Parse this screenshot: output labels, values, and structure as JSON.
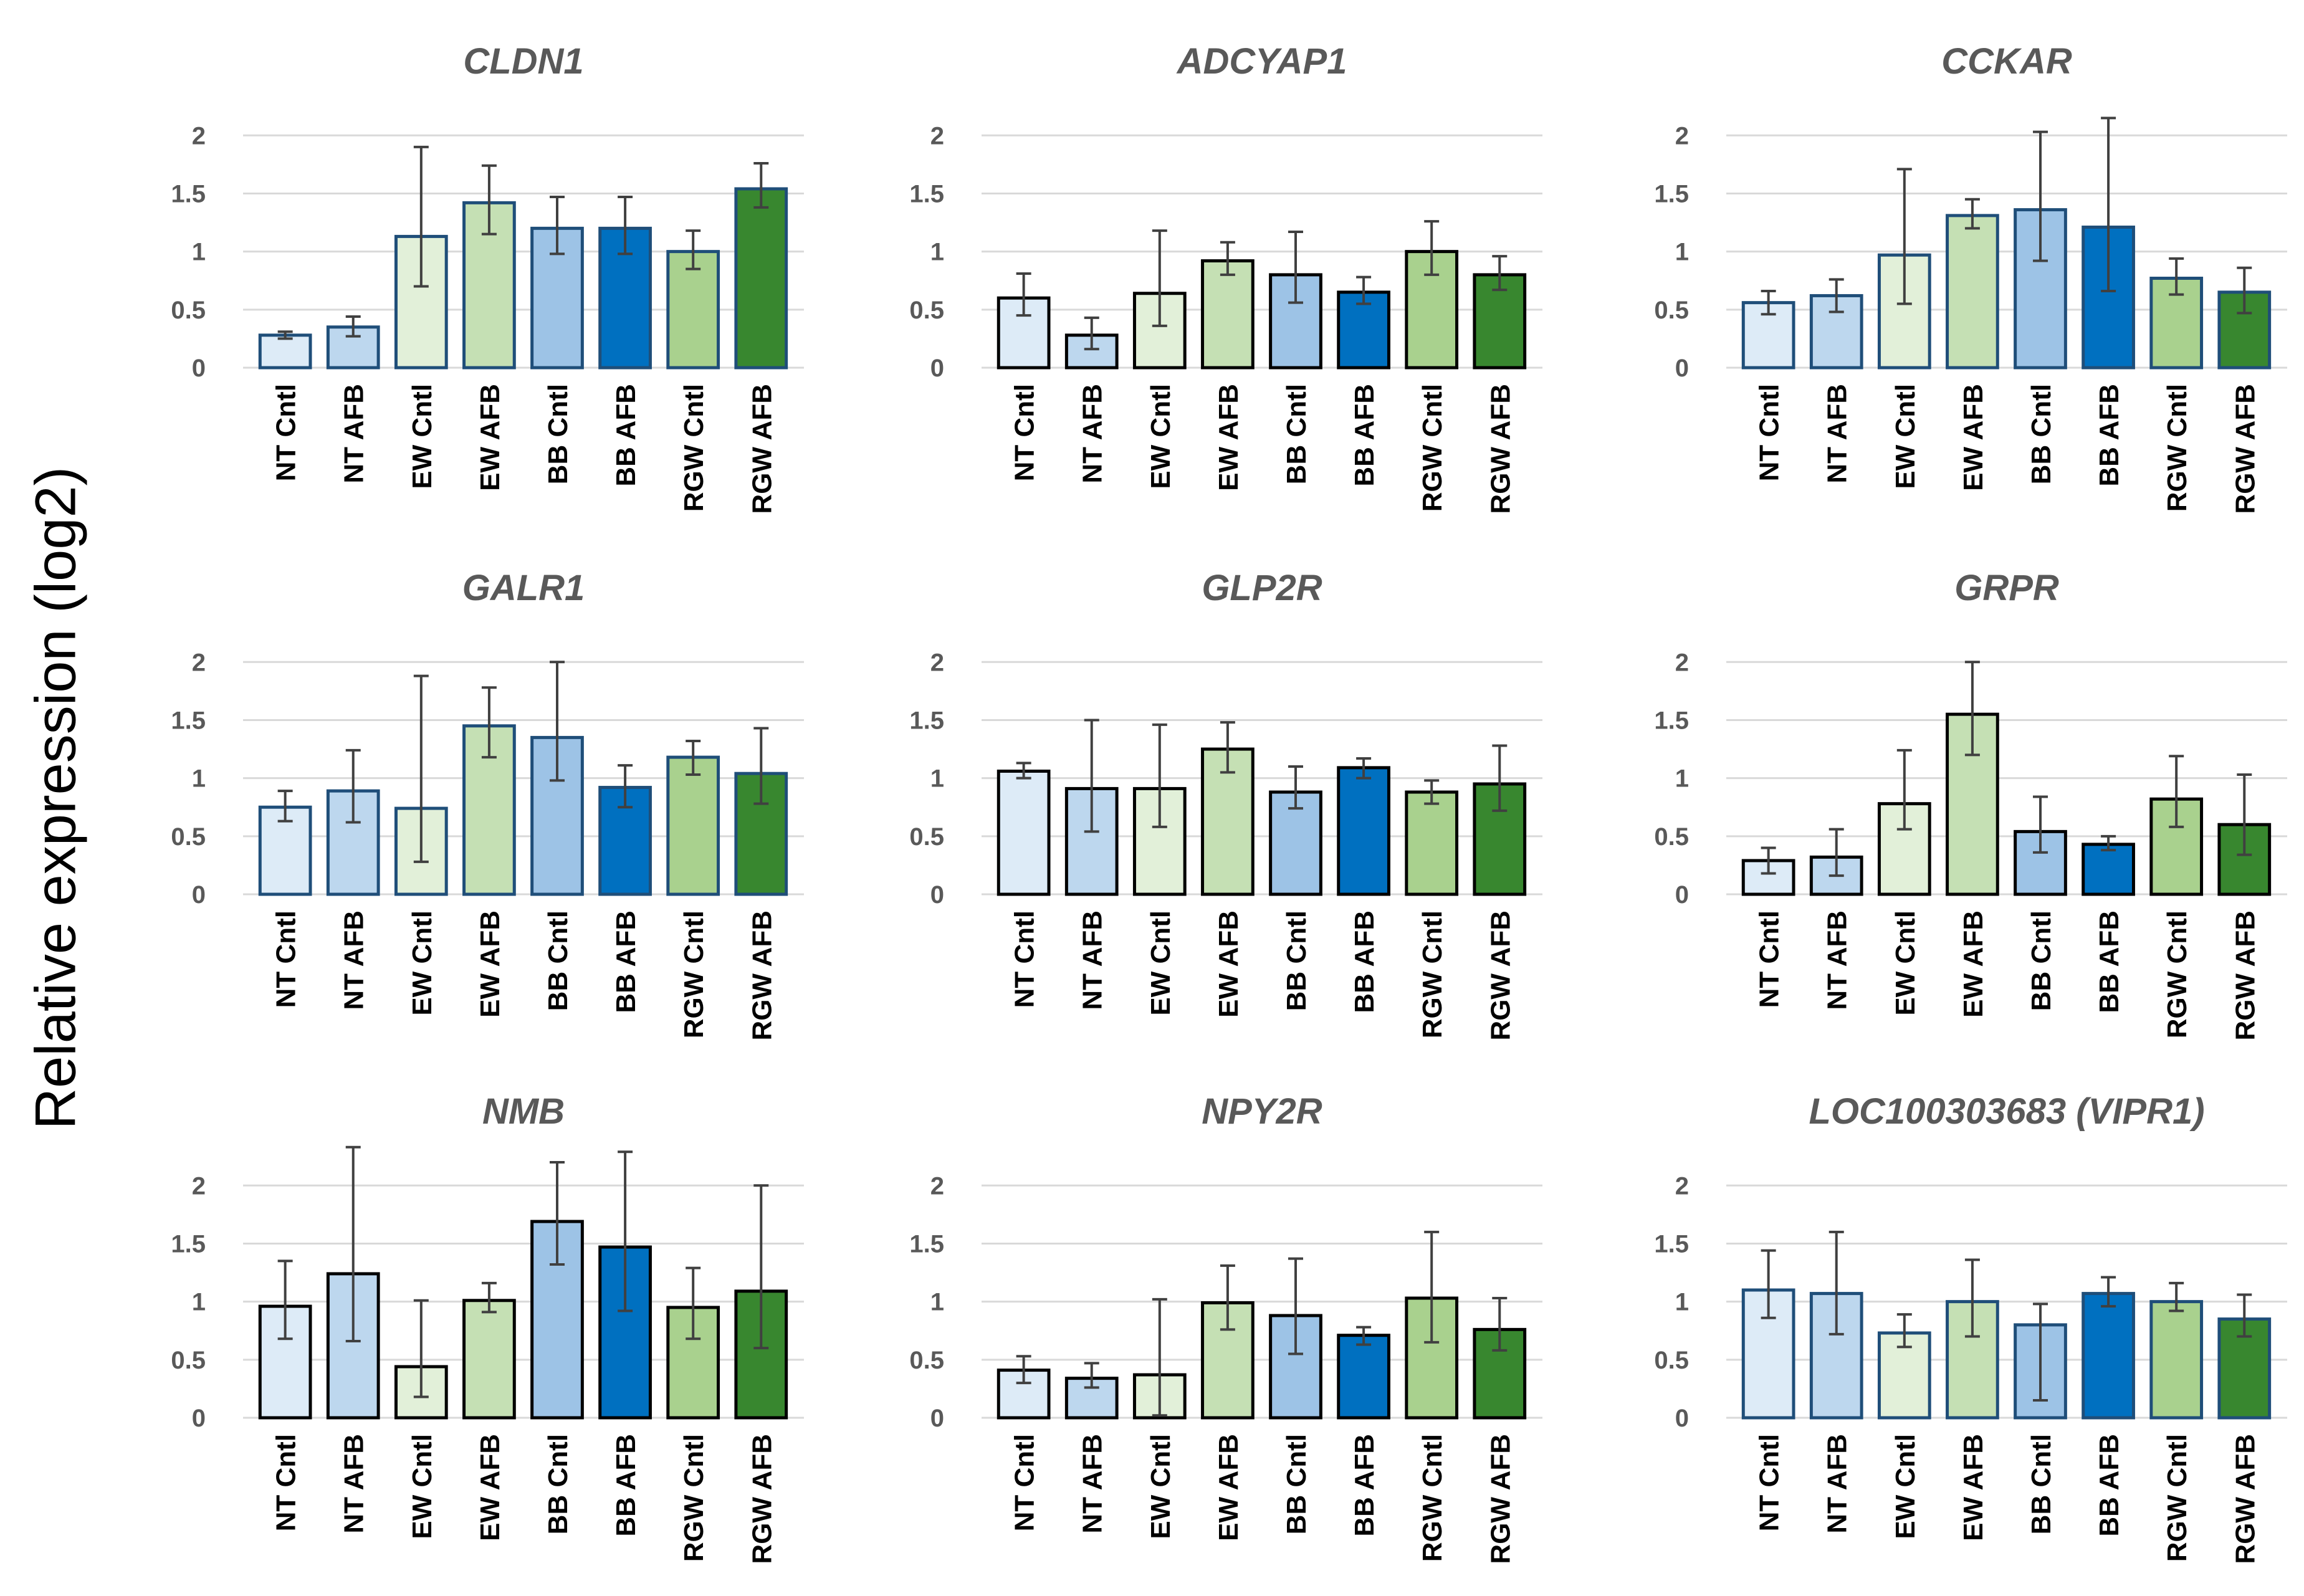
{
  "figure": {
    "ylabel": "Relative expression (log2)"
  },
  "colors": {
    "NT Cntl": "#DDEBF7",
    "NT AFB": "#BDD7EE",
    "EW Cntl": "#E2F0D9",
    "EW AFB": "#C5E0B4",
    "BB Cntl": "#9DC3E6",
    "BB AFB": "#0070C0",
    "RGW Cntl": "#A9D18E",
    "RGW AFB": "#38872F",
    "blue_edge": "#1F4E79",
    "black_edge": "#000000",
    "title": "#595959",
    "tick": "#595959",
    "grid": "#D9D9D9",
    "error": "#404040"
  },
  "chart_data": [
    {
      "type": "bar",
      "title": "CLDN1",
      "categories": [
        "NT Cntl",
        "NT AFB",
        "EW Cntl",
        "EW AFB",
        "BB Cntl",
        "BB AFB",
        "RGW Cntl",
        "RGW AFB"
      ],
      "values": [
        0.28,
        0.35,
        1.13,
        1.42,
        1.2,
        1.2,
        1.0,
        1.54
      ],
      "error_low": [
        0.25,
        0.27,
        0.7,
        1.15,
        0.98,
        0.98,
        0.85,
        1.38
      ],
      "error_high": [
        0.31,
        0.44,
        1.9,
        1.74,
        1.47,
        1.47,
        1.18,
        1.76
      ],
      "yticks": [
        "0",
        "0.5",
        "1",
        "1.5",
        "2"
      ],
      "ylim": [
        0,
        2.2
      ],
      "edge": "blue"
    },
    {
      "type": "bar",
      "title": "ADCYAP1",
      "categories": [
        "NT Cntl",
        "NT AFB",
        "EW Cntl",
        "EW AFB",
        "BB Cntl",
        "BB AFB",
        "RGW Cntl",
        "RGW AFB"
      ],
      "values": [
        0.6,
        0.28,
        0.64,
        0.92,
        0.8,
        0.65,
        1.0,
        0.8
      ],
      "error_low": [
        0.45,
        0.16,
        0.36,
        0.8,
        0.56,
        0.55,
        0.8,
        0.67
      ],
      "error_high": [
        0.81,
        0.43,
        1.18,
        1.08,
        1.17,
        0.78,
        1.26,
        0.96
      ],
      "yticks": [
        "0",
        "0.5",
        "1",
        "1.5",
        "2"
      ],
      "ylim": [
        0,
        2.2
      ],
      "edge": "black"
    },
    {
      "type": "bar",
      "title": "CCKAR",
      "categories": [
        "NT Cntl",
        "NT AFB",
        "EW Cntl",
        "EW AFB",
        "BB Cntl",
        "BB AFB",
        "RGW Cntl",
        "RGW AFB"
      ],
      "values": [
        0.56,
        0.62,
        0.97,
        1.31,
        1.36,
        1.21,
        0.77,
        0.65
      ],
      "error_low": [
        0.46,
        0.48,
        0.55,
        1.2,
        0.92,
        0.66,
        0.63,
        0.47
      ],
      "error_high": [
        0.66,
        0.76,
        1.71,
        1.45,
        2.03,
        2.15,
        0.94,
        0.86
      ],
      "yticks": [
        "0",
        "0.5",
        "1",
        "1.5",
        "2"
      ],
      "ylim": [
        0,
        2.2
      ],
      "edge": "blue"
    },
    {
      "type": "bar",
      "title": "GALR1",
      "categories": [
        "NT Cntl",
        "NT AFB",
        "EW Cntl",
        "EW AFB",
        "BB Cntl",
        "BB AFB",
        "RGW Cntl",
        "RGW AFB"
      ],
      "values": [
        0.75,
        0.89,
        0.74,
        1.45,
        1.35,
        0.92,
        1.18,
        1.04
      ],
      "error_low": [
        0.63,
        0.62,
        0.28,
        1.18,
        0.98,
        0.75,
        1.03,
        0.78
      ],
      "error_high": [
        0.89,
        1.24,
        1.88,
        1.78,
        2.0,
        1.11,
        1.32,
        1.43
      ],
      "yticks": [
        "0",
        "0.5",
        "1",
        "1.5",
        "2"
      ],
      "ylim": [
        0,
        2.2
      ],
      "edge": "blue"
    },
    {
      "type": "bar",
      "title": "GLP2R",
      "categories": [
        "NT Cntl",
        "NT AFB",
        "EW Cntl",
        "EW AFB",
        "BB Cntl",
        "BB AFB",
        "RGW Cntl",
        "RGW AFB"
      ],
      "values": [
        1.06,
        0.91,
        0.91,
        1.25,
        0.88,
        1.09,
        0.88,
        0.95
      ],
      "error_low": [
        1.0,
        0.54,
        0.58,
        1.05,
        0.74,
        1.0,
        0.78,
        0.72
      ],
      "error_high": [
        1.13,
        1.5,
        1.46,
        1.48,
        1.1,
        1.17,
        0.98,
        1.28
      ],
      "yticks": [
        "0",
        "0.5",
        "1",
        "1.5",
        "2"
      ],
      "ylim": [
        0,
        2.2
      ],
      "edge": "black"
    },
    {
      "type": "bar",
      "title": "GRPR",
      "categories": [
        "NT Cntl",
        "NT AFB",
        "EW Cntl",
        "EW AFB",
        "BB Cntl",
        "BB AFB",
        "RGW Cntl",
        "RGW AFB"
      ],
      "values": [
        0.29,
        0.32,
        0.78,
        1.55,
        0.54,
        0.43,
        0.82,
        0.6
      ],
      "error_low": [
        0.18,
        0.16,
        0.56,
        1.2,
        0.36,
        0.38,
        0.58,
        0.34
      ],
      "error_high": [
        0.4,
        0.56,
        1.24,
        2.0,
        0.84,
        0.5,
        1.19,
        1.03
      ],
      "yticks": [
        "0",
        "0.5",
        "1",
        "1.5",
        "2"
      ],
      "ylim": [
        0,
        2.2
      ],
      "edge": "black"
    },
    {
      "type": "bar",
      "title": "NMB",
      "categories": [
        "NT Cntl",
        "NT AFB",
        "EW Cntl",
        "EW AFB",
        "BB Cntl",
        "BB AFB",
        "RGW Cntl",
        "RGW AFB"
      ],
      "values": [
        0.96,
        1.24,
        0.44,
        1.01,
        1.69,
        1.47,
        0.95,
        1.09
      ],
      "error_low": [
        0.68,
        0.66,
        0.18,
        0.91,
        1.32,
        0.92,
        0.68,
        0.6
      ],
      "error_high": [
        1.35,
        2.33,
        1.01,
        1.16,
        2.2,
        2.29,
        1.29,
        2.0
      ],
      "yticks": [
        "0",
        "0.5",
        "1",
        "1.5",
        "2"
      ],
      "ylim": [
        0,
        2.2
      ],
      "edge": "black"
    },
    {
      "type": "bar",
      "title": "NPY2R",
      "categories": [
        "NT Cntl",
        "NT AFB",
        "EW Cntl",
        "EW AFB",
        "BB Cntl",
        "BB AFB",
        "RGW Cntl",
        "RGW AFB"
      ],
      "values": [
        0.41,
        0.34,
        0.37,
        0.99,
        0.88,
        0.71,
        1.03,
        0.76
      ],
      "error_low": [
        0.3,
        0.26,
        0.02,
        0.76,
        0.55,
        0.63,
        0.65,
        0.58
      ],
      "error_high": [
        0.53,
        0.47,
        1.02,
        1.31,
        1.37,
        0.78,
        1.6,
        1.03
      ],
      "yticks": [
        "0",
        "0.5",
        "1",
        "1.5",
        "2"
      ],
      "ylim": [
        0,
        2.2
      ],
      "edge": "black"
    },
    {
      "type": "bar",
      "title": "LOC100303683 (VIPR1)",
      "categories": [
        "NT Cntl",
        "NT AFB",
        "EW Cntl",
        "EW AFB",
        "BB Cntl",
        "BB AFB",
        "RGW Cntl",
        "RGW AFB"
      ],
      "values": [
        1.1,
        1.07,
        0.73,
        1.0,
        0.8,
        1.07,
        1.0,
        0.85
      ],
      "error_low": [
        0.86,
        0.72,
        0.61,
        0.7,
        0.15,
        0.96,
        0.92,
        0.7
      ],
      "error_high": [
        1.44,
        1.6,
        0.89,
        1.36,
        0.98,
        1.21,
        1.16,
        1.06
      ],
      "yticks": [
        "0",
        "0.5",
        "1",
        "1.5",
        "2"
      ],
      "ylim": [
        0,
        2.2
      ],
      "edge": "blue"
    }
  ]
}
